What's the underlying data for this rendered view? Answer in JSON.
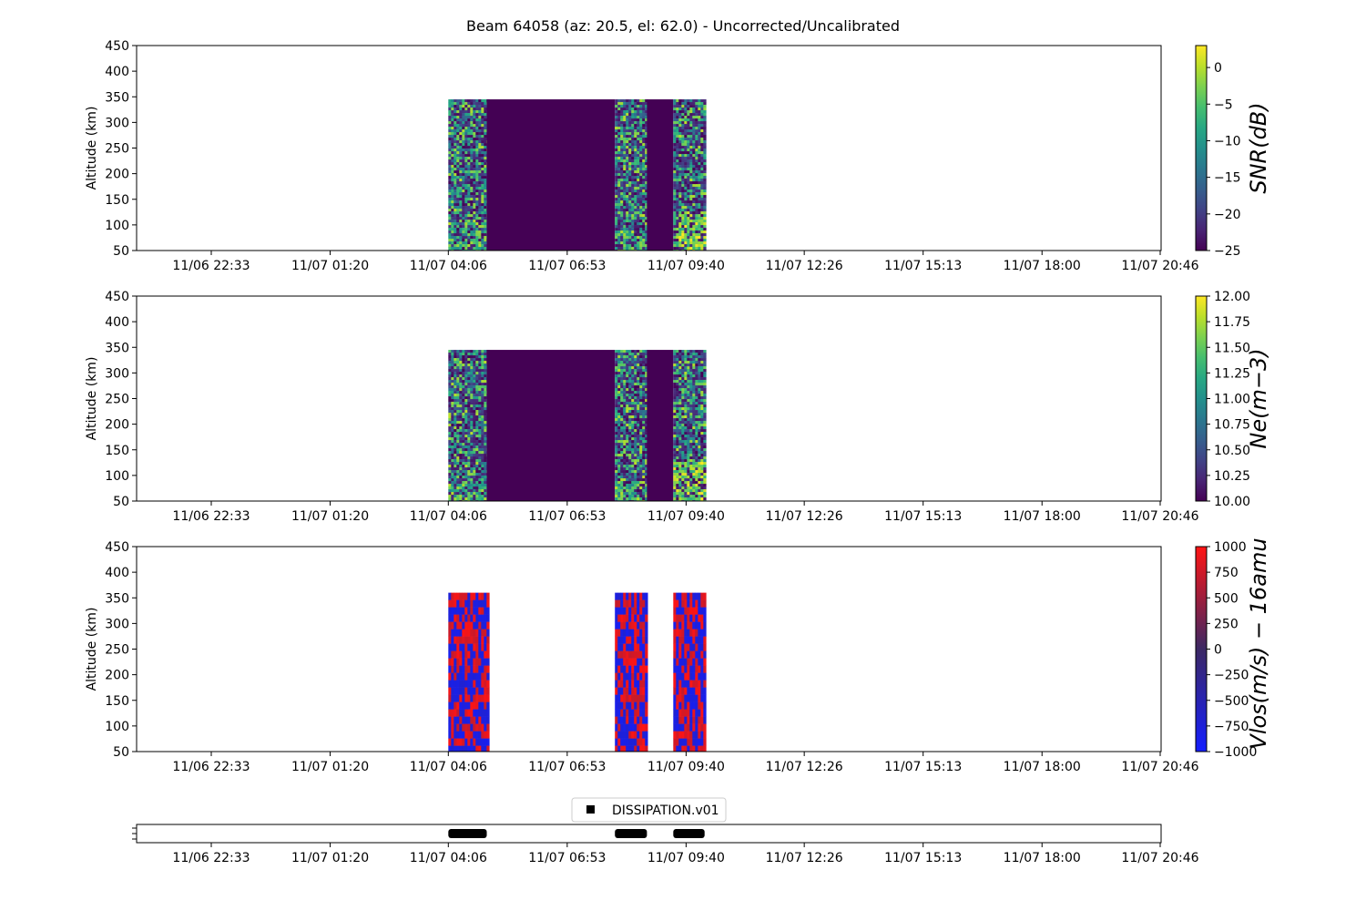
{
  "figure_title": "Beam 64058 (az: 20.5, el: 62.0) - Uncorrected/Uncalibrated",
  "x_ticks": [
    "11/06 22:33",
    "11/07 01:20",
    "11/07 04:06",
    "11/07 06:53",
    "11/07 09:40",
    "11/07 12:26",
    "11/07 15:13",
    "11/07 18:00",
    "11/07 20:46"
  ],
  "chart_data": [
    {
      "type": "heatmap",
      "ylabel": "Altitude (km)",
      "y_ticks": [
        "50",
        "100",
        "150",
        "200",
        "250",
        "300",
        "350",
        "400",
        "450"
      ],
      "ylim": [
        50,
        450
      ],
      "altitude_top": 345,
      "colormap": "viridis",
      "colorbar_label": "SNR(dB)",
      "colorbar_ticks": [
        "0",
        "−5",
        "−10",
        "−15",
        "−20",
        "−25"
      ],
      "clim": [
        -25,
        3
      ],
      "data_blocks": [
        {
          "start": "11/07 04:06",
          "end": "11/07 05:00",
          "level": "noisy"
        },
        {
          "start": "11/07 05:00",
          "end": "11/07 08:00",
          "level": "min"
        },
        {
          "start": "11/07 08:00",
          "end": "11/07 08:45",
          "level": "noisy"
        },
        {
          "start": "11/07 08:45",
          "end": "11/07 09:22",
          "level": "min"
        },
        {
          "start": "11/07 09:22",
          "end": "11/07 10:06",
          "level": "noisy"
        }
      ]
    },
    {
      "type": "heatmap",
      "ylabel": "Altitude (km)",
      "y_ticks": [
        "50",
        "100",
        "150",
        "200",
        "250",
        "300",
        "350",
        "400",
        "450"
      ],
      "ylim": [
        50,
        450
      ],
      "altitude_top": 345,
      "colormap": "viridis",
      "colorbar_label": "Ne(m−3)",
      "colorbar_ticks": [
        "12.00",
        "11.75",
        "11.50",
        "11.25",
        "11.00",
        "10.75",
        "10.50",
        "10.25",
        "10.00"
      ],
      "clim": [
        10,
        12
      ],
      "data_blocks": [
        {
          "start": "11/07 04:06",
          "end": "11/07 05:00",
          "level": "noisy"
        },
        {
          "start": "11/07 05:00",
          "end": "11/07 08:00",
          "level": "min"
        },
        {
          "start": "11/07 08:00",
          "end": "11/07 08:45",
          "level": "noisy"
        },
        {
          "start": "11/07 08:45",
          "end": "11/07 09:22",
          "level": "min"
        },
        {
          "start": "11/07 09:22",
          "end": "11/07 10:06",
          "level": "noisy"
        }
      ]
    },
    {
      "type": "heatmap",
      "ylabel": "Altitude (km)",
      "y_ticks": [
        "50",
        "100",
        "150",
        "200",
        "250",
        "300",
        "350",
        "400",
        "450"
      ],
      "ylim": [
        50,
        450
      ],
      "altitude_top": 360,
      "colormap": "bwr",
      "colorbar_label": "Vlos(m/s) − 16amu",
      "colorbar_ticks": [
        "1000",
        "750",
        "500",
        "250",
        "0",
        "−250",
        "−500",
        "−750",
        "−1000"
      ],
      "clim": [
        -1000,
        1000
      ],
      "data_blocks": [
        {
          "start": "11/07 04:06",
          "end": "11/07 05:00",
          "level": "noisy"
        },
        {
          "start": "11/07 08:00",
          "end": "11/07 08:45",
          "level": "noisy"
        },
        {
          "start": "11/07 09:22",
          "end": "11/07 10:06",
          "level": "noisy"
        }
      ]
    },
    {
      "type": "bar",
      "legend": "DISSIPATION.v01",
      "legend_position": "top-center",
      "segments": [
        {
          "start": "11/07 04:06",
          "end": "11/07 05:00"
        },
        {
          "start": "11/07 08:00",
          "end": "11/07 08:45"
        },
        {
          "start": "11/07 09:22",
          "end": "11/07 10:06"
        }
      ]
    }
  ]
}
